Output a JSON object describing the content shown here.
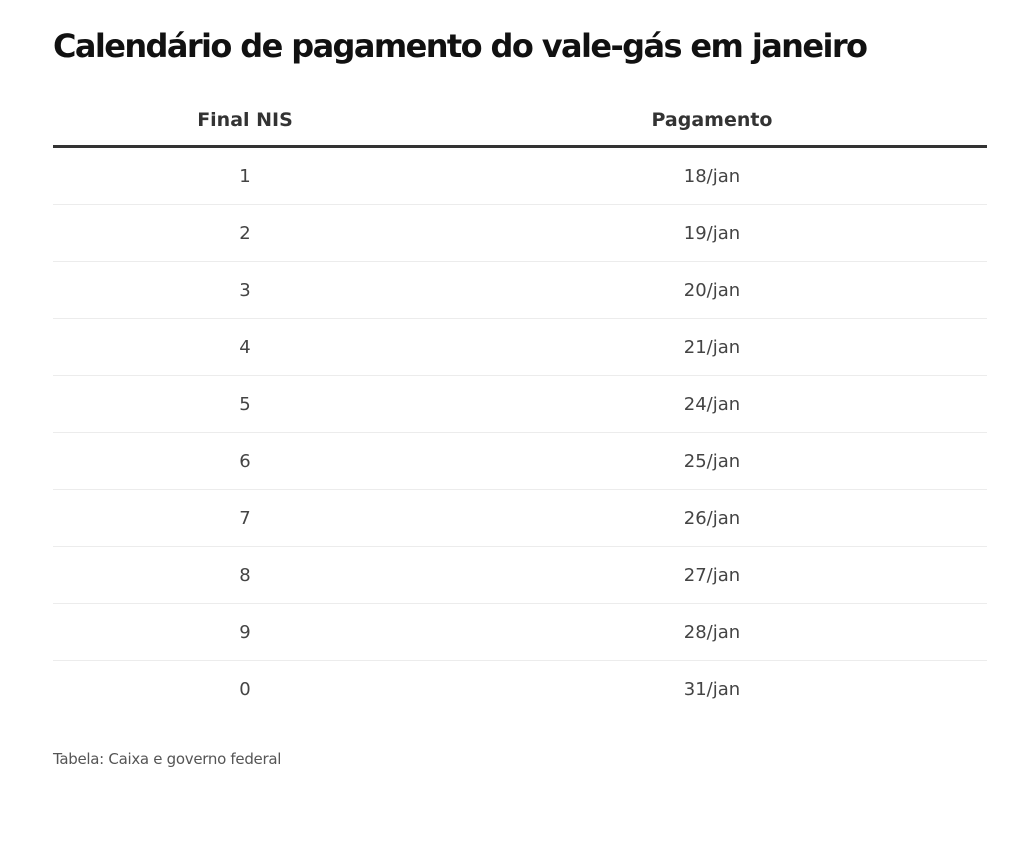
{
  "title": "Calendário de pagamento do vale-gás em janeiro",
  "table": {
    "headers": [
      "Final NIS",
      "Pagamento"
    ],
    "rows": [
      [
        "1",
        "18/jan"
      ],
      [
        "2",
        "19/jan"
      ],
      [
        "3",
        "20/jan"
      ],
      [
        "4",
        "21/jan"
      ],
      [
        "5",
        "24/jan"
      ],
      [
        "6",
        "25/jan"
      ],
      [
        "7",
        "26/jan"
      ],
      [
        "8",
        "27/jan"
      ],
      [
        "9",
        "28/jan"
      ],
      [
        "0",
        "31/jan"
      ]
    ]
  },
  "source": "Tabela: Caixa e governo federal"
}
